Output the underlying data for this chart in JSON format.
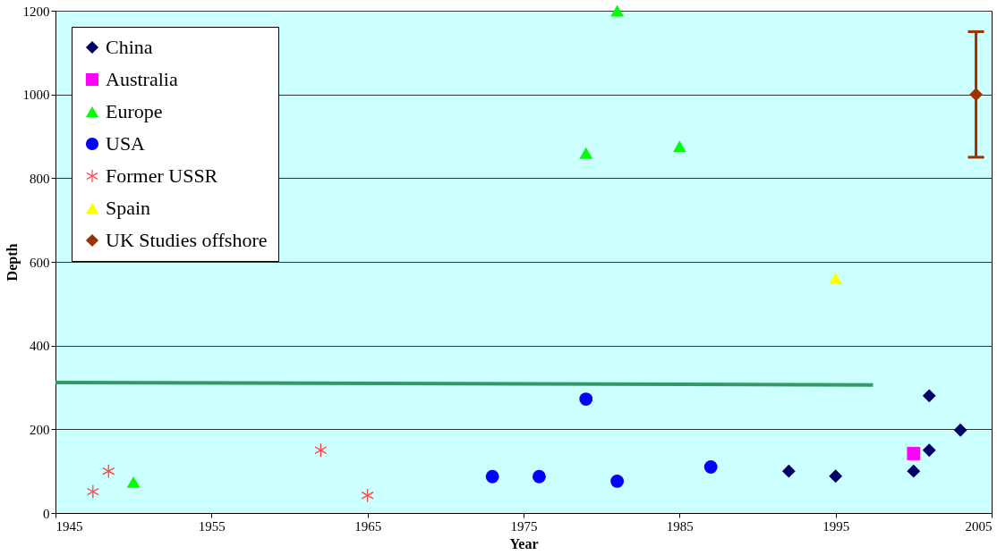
{
  "chart_data": {
    "type": "scatter",
    "xlabel": "Year",
    "ylabel": "Depth",
    "xlim": [
      1945,
      2005
    ],
    "xticks": [
      1945,
      1955,
      1965,
      1975,
      1985,
      1995,
      2005
    ],
    "ylim": [
      0,
      1200
    ],
    "yticks": [
      0,
      200,
      400,
      600,
      800,
      1000,
      1200
    ],
    "grid": "y",
    "legend": "top left",
    "series": [
      {
        "name": "China",
        "color": "#000066",
        "marker": "diamond",
        "x": [
          1992,
          1995,
          2000,
          2001,
          2001,
          2003
        ],
        "values": [
          100,
          88,
          100,
          150,
          280,
          198
        ]
      },
      {
        "name": "Australia",
        "color": "#ff00ff",
        "marker": "square",
        "x": [
          2000
        ],
        "values": [
          142
        ]
      },
      {
        "name": "Europe",
        "color": "#00ff00",
        "marker": "triangle",
        "x": [
          1950,
          1979,
          1981,
          1985
        ],
        "values": [
          74,
          860,
          1200,
          876
        ]
      },
      {
        "name": "USA",
        "color": "#0000ff",
        "marker": "circle",
        "x": [
          1973,
          1976,
          1979,
          1981,
          1987
        ],
        "values": [
          87,
          87,
          272,
          76,
          110
        ]
      },
      {
        "name": "Former USSR",
        "color": "#ff3333",
        "marker": "cross",
        "x": [
          1947.4,
          1948.4,
          1962,
          1965
        ],
        "values": [
          51,
          100,
          150,
          42
        ]
      },
      {
        "name": "Spain",
        "color": "#ffff00",
        "marker": "triangle",
        "x": [
          1995
        ],
        "values": [
          561
        ]
      },
      {
        "name": "UK Studies offshore",
        "color": "#993300",
        "marker": "diamond",
        "x": [
          2004
        ],
        "values": [
          1000
        ],
        "errors": [
          [
            850,
            1150
          ]
        ]
      },
      {
        "type": "line",
        "color": "#339966",
        "x": [
          1945,
          1997.4
        ],
        "values": [
          312,
          306
        ]
      }
    ]
  }
}
